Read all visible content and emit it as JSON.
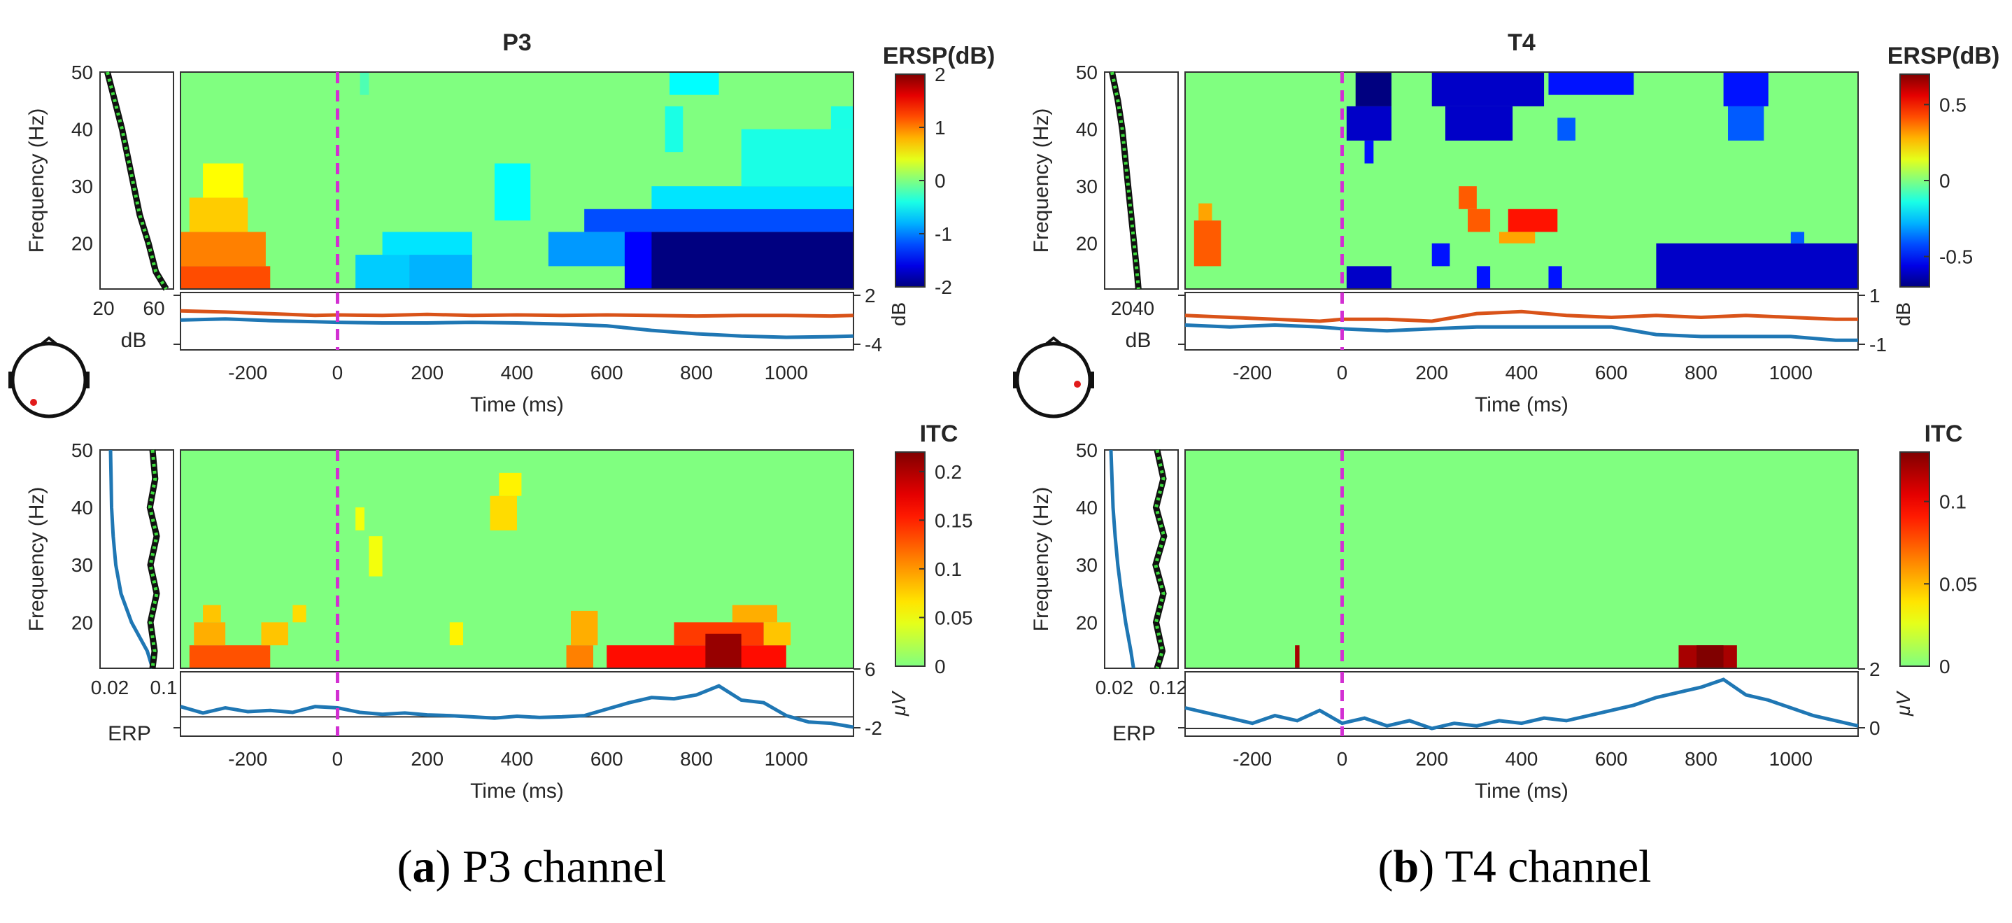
{
  "figure": {
    "caption_a_letter": "a",
    "caption_a_text": " P3 channel",
    "caption_b_letter": "b",
    "caption_b_text": " T4 channel",
    "colors": {
      "background_green": "#80FF80",
      "erp_blue": "#1F77B4",
      "ersp_orange": "#D95319",
      "marker_magenta": "#D22FD2",
      "spectrum_green": "#1B6E1B",
      "scalp_dot": "#E11B1B"
    }
  },
  "chart_data": [
    {
      "id": "a-ersp",
      "type": "heatmap",
      "panel": "P3",
      "title": "P3",
      "xlabel": "Time (ms)",
      "ylabel": "Frequency (Hz)",
      "xlim": [
        -350,
        1150
      ],
      "ylim": [
        12,
        50
      ],
      "xticks": [
        "-200",
        "0",
        "200",
        "400",
        "600",
        "800",
        "1000"
      ],
      "yticks": [
        "20",
        "30",
        "40",
        "50"
      ],
      "colorbar_label": "ERSP(dB)",
      "colorbar_ticks": [
        "2",
        "1",
        "0",
        "-1",
        "-2"
      ],
      "clim": [
        -2,
        2
      ],
      "stimulus_onset_ms": 0,
      "cells": [
        {
          "t0": -350,
          "t1": -150,
          "f0": 12,
          "f1": 16,
          "v": 1.2
        },
        {
          "t0": -350,
          "t1": -160,
          "f0": 16,
          "f1": 22,
          "v": 1.0
        },
        {
          "t0": -330,
          "t1": -200,
          "f0": 22,
          "f1": 28,
          "v": 0.7
        },
        {
          "t0": -300,
          "t1": -210,
          "f0": 28,
          "f1": 34,
          "v": 0.5
        },
        {
          "t0": 40,
          "t1": 160,
          "f0": 12,
          "f1": 18,
          "v": -0.7
        },
        {
          "t0": 100,
          "t1": 300,
          "f0": 18,
          "f1": 22,
          "v": -0.6
        },
        {
          "t0": 160,
          "t1": 300,
          "f0": 12,
          "f1": 18,
          "v": -0.8
        },
        {
          "t0": 350,
          "t1": 430,
          "f0": 24,
          "f1": 34,
          "v": -0.5
        },
        {
          "t0": 470,
          "t1": 700,
          "f0": 16,
          "f1": 22,
          "v": -0.9
        },
        {
          "t0": 550,
          "t1": 1150,
          "f0": 22,
          "f1": 26,
          "v": -1.2
        },
        {
          "t0": 650,
          "t1": 1150,
          "f0": 12,
          "f1": 22,
          "v": -2.0
        },
        {
          "t0": 640,
          "t1": 700,
          "f0": 12,
          "f1": 22,
          "v": -1.5
        },
        {
          "t0": 700,
          "t1": 1150,
          "f0": 26,
          "f1": 30,
          "v": -0.6
        },
        {
          "t0": 900,
          "t1": 1150,
          "f0": 30,
          "f1": 40,
          "v": -0.4
        },
        {
          "t0": 1100,
          "t1": 1150,
          "f0": 40,
          "f1": 44,
          "v": -0.4
        },
        {
          "t0": 730,
          "t1": 770,
          "f0": 36,
          "f1": 44,
          "v": -0.4
        },
        {
          "t0": 740,
          "t1": 850,
          "f0": 46,
          "f1": 50,
          "v": -0.5
        },
        {
          "t0": 50,
          "t1": 70,
          "f0": 46,
          "f1": 50,
          "v": -0.2
        }
      ]
    },
    {
      "id": "a-ersp-summary",
      "type": "line",
      "panel": "P3",
      "ylabel": "dB",
      "yticks": [
        "2",
        "-4"
      ],
      "ylim": [
        -6,
        4
      ],
      "series": [
        {
          "color": "#D95319",
          "x": [
            -350,
            -250,
            -150,
            -50,
            0,
            100,
            200,
            300,
            400,
            500,
            600,
            700,
            800,
            900,
            1000,
            1100,
            1150
          ],
          "y": [
            0.8,
            0.6,
            0.3,
            0.0,
            0.1,
            0.0,
            0.2,
            0.0,
            0.1,
            0.0,
            0.1,
            0.0,
            -0.1,
            0.0,
            0.0,
            -0.1,
            0.0
          ]
        },
        {
          "color": "#1F77B4",
          "x": [
            -350,
            -250,
            -150,
            -50,
            0,
            100,
            200,
            300,
            400,
            500,
            600,
            700,
            800,
            900,
            1000,
            1100,
            1150
          ],
          "y": [
            -0.8,
            -0.6,
            -0.9,
            -1.1,
            -1.2,
            -1.3,
            -1.3,
            -1.2,
            -1.3,
            -1.5,
            -1.8,
            -2.6,
            -3.2,
            -3.6,
            -3.8,
            -3.7,
            -3.6
          ]
        }
      ]
    },
    {
      "id": "a-ersp-spectrum",
      "type": "line",
      "panel": "P3",
      "xticks": [
        "20",
        "60"
      ],
      "xlabel": "dB",
      "freq": [
        50,
        45,
        40,
        35,
        30,
        25,
        20,
        15,
        12
      ],
      "values": [
        20,
        25,
        30,
        34,
        38,
        42,
        48,
        53,
        60
      ]
    },
    {
      "id": "a-itc",
      "type": "heatmap",
      "panel": "P3",
      "xlabel": "Time (ms)",
      "ylabel": "Frequency (Hz)",
      "xlim": [
        -350,
        1150
      ],
      "ylim": [
        12,
        50
      ],
      "xticks": [
        "-200",
        "0",
        "200",
        "400",
        "600",
        "800",
        "1000"
      ],
      "yticks": [
        "20",
        "30",
        "40",
        "50"
      ],
      "colorbar_label": "ITC",
      "colorbar_ticks": [
        "0.2",
        "0.15",
        "0.1",
        "0.05",
        "0"
      ],
      "clim": [
        0,
        0.22
      ],
      "stimulus_onset_ms": 0,
      "cells": [
        {
          "t0": -330,
          "t1": -150,
          "f0": 12,
          "f1": 16,
          "v": 0.13
        },
        {
          "t0": -320,
          "t1": -250,
          "f0": 16,
          "f1": 20,
          "v": 0.09
        },
        {
          "t0": -300,
          "t1": -260,
          "f0": 20,
          "f1": 23,
          "v": 0.08
        },
        {
          "t0": -170,
          "t1": -110,
          "f0": 16,
          "f1": 20,
          "v": 0.08
        },
        {
          "t0": -100,
          "t1": -70,
          "f0": 20,
          "f1": 23,
          "v": 0.07
        },
        {
          "t0": 40,
          "t1": 60,
          "f0": 36,
          "f1": 40,
          "v": 0.05
        },
        {
          "t0": 70,
          "t1": 100,
          "f0": 28,
          "f1": 35,
          "v": 0.05
        },
        {
          "t0": 340,
          "t1": 400,
          "f0": 36,
          "f1": 42,
          "v": 0.07
        },
        {
          "t0": 360,
          "t1": 410,
          "f0": 42,
          "f1": 46,
          "v": 0.06
        },
        {
          "t0": 250,
          "t1": 280,
          "f0": 16,
          "f1": 20,
          "v": 0.06
        },
        {
          "t0": 510,
          "t1": 570,
          "f0": 12,
          "f1": 16,
          "v": 0.11
        },
        {
          "t0": 520,
          "t1": 580,
          "f0": 16,
          "f1": 22,
          "v": 0.09
        },
        {
          "t0": 600,
          "t1": 1000,
          "f0": 12,
          "f1": 16,
          "v": 0.16
        },
        {
          "t0": 750,
          "t1": 950,
          "f0": 16,
          "f1": 20,
          "v": 0.14
        },
        {
          "t0": 820,
          "t1": 900,
          "f0": 12,
          "f1": 18,
          "v": 0.21
        },
        {
          "t0": 880,
          "t1": 980,
          "f0": 20,
          "f1": 23,
          "v": 0.09
        },
        {
          "t0": 950,
          "t1": 1010,
          "f0": 16,
          "f1": 20,
          "v": 0.08
        }
      ]
    },
    {
      "id": "a-erp",
      "type": "line",
      "panel": "P3",
      "xlabel": "Time (ms)",
      "ylabel": "μV",
      "yticks": [
        "6",
        "-2"
      ],
      "ylim": [
        -3,
        7
      ],
      "left_label": "ERP",
      "x": [
        -350,
        -300,
        -250,
        -200,
        -150,
        -100,
        -50,
        0,
        50,
        100,
        150,
        200,
        250,
        300,
        350,
        400,
        450,
        500,
        550,
        600,
        650,
        700,
        750,
        800,
        850,
        900,
        950,
        1000,
        1050,
        1100,
        1150
      ],
      "y": [
        1.6,
        0.6,
        1.4,
        0.8,
        1.0,
        0.7,
        1.6,
        1.4,
        0.7,
        0.4,
        0.6,
        0.3,
        0.2,
        0.0,
        -0.2,
        0.1,
        -0.1,
        0.0,
        0.2,
        1.2,
        2.2,
        3.0,
        2.8,
        3.4,
        4.8,
        2.6,
        2.2,
        0.2,
        -0.8,
        -1.0,
        -1.6
      ]
    },
    {
      "id": "a-itc-spectrum",
      "type": "line",
      "panel": "P3",
      "xticks": [
        "0.02",
        "0.1"
      ],
      "freq": [
        50,
        45,
        40,
        35,
        30,
        25,
        20,
        15,
        12
      ],
      "itc": [
        0.02,
        0.021,
        0.022,
        0.025,
        0.03,
        0.04,
        0.06,
        0.09,
        0.1
      ],
      "sig": [
        0.1,
        0.105,
        0.095,
        0.108,
        0.096,
        0.108,
        0.096,
        0.104,
        0.1
      ]
    },
    {
      "id": "b-ersp",
      "type": "heatmap",
      "panel": "T4",
      "title": "T4",
      "xlabel": "Time (ms)",
      "ylabel": "Frequency (Hz)",
      "xlim": [
        -350,
        1150
      ],
      "ylim": [
        12,
        50
      ],
      "xticks": [
        "-200",
        "0",
        "200",
        "400",
        "600",
        "800",
        "1000"
      ],
      "yticks": [
        "20",
        "30",
        "40",
        "50"
      ],
      "colorbar_label": "ERSP(dB)",
      "colorbar_ticks": [
        "0.5",
        "0",
        "-0.5"
      ],
      "clim": [
        -0.7,
        0.7
      ],
      "stimulus_onset_ms": 0,
      "cells": [
        {
          "t0": 30,
          "t1": 110,
          "f0": 44,
          "f1": 50,
          "v": -0.7
        },
        {
          "t0": 10,
          "t1": 110,
          "f0": 38,
          "f1": 44,
          "v": -0.6
        },
        {
          "t0": 50,
          "t1": 70,
          "f0": 34,
          "f1": 38,
          "v": -0.5
        },
        {
          "t0": 200,
          "t1": 450,
          "f0": 44,
          "f1": 50,
          "v": -0.6
        },
        {
          "t0": 230,
          "t1": 380,
          "f0": 38,
          "f1": 44,
          "v": -0.6
        },
        {
          "t0": 460,
          "t1": 650,
          "f0": 46,
          "f1": 50,
          "v": -0.5
        },
        {
          "t0": 480,
          "t1": 520,
          "f0": 38,
          "f1": 42,
          "v": -0.4
        },
        {
          "t0": 850,
          "t1": 950,
          "f0": 44,
          "f1": 50,
          "v": -0.5
        },
        {
          "t0": 860,
          "t1": 940,
          "f0": 38,
          "f1": 44,
          "v": -0.4
        },
        {
          "t0": 10,
          "t1": 110,
          "f0": 12,
          "f1": 16,
          "v": -0.6
        },
        {
          "t0": 200,
          "t1": 240,
          "f0": 16,
          "f1": 20,
          "v": -0.5
        },
        {
          "t0": 300,
          "t1": 330,
          "f0": 12,
          "f1": 16,
          "v": -0.5
        },
        {
          "t0": 460,
          "t1": 490,
          "f0": 12,
          "f1": 16,
          "v": -0.5
        },
        {
          "t0": 700,
          "t1": 1150,
          "f0": 12,
          "f1": 20,
          "v": -0.6
        },
        {
          "t0": 1000,
          "t1": 1030,
          "f0": 20,
          "f1": 22,
          "v": -0.4
        },
        {
          "t0": -330,
          "t1": -270,
          "f0": 16,
          "f1": 24,
          "v": 0.4
        },
        {
          "t0": -320,
          "t1": -290,
          "f0": 24,
          "f1": 27,
          "v": 0.3
        },
        {
          "t0": 260,
          "t1": 300,
          "f0": 26,
          "f1": 30,
          "v": 0.4
        },
        {
          "t0": 280,
          "t1": 330,
          "f0": 22,
          "f1": 26,
          "v": 0.4
        },
        {
          "t0": 370,
          "t1": 480,
          "f0": 22,
          "f1": 26,
          "v": 0.5
        },
        {
          "t0": 350,
          "t1": 430,
          "f0": 20,
          "f1": 22,
          "v": 0.3
        }
      ]
    },
    {
      "id": "b-ersp-summary",
      "type": "line",
      "panel": "T4",
      "ylabel": "dB",
      "yticks": [
        "1",
        "-1"
      ],
      "ylim": [
        -1.5,
        1.5
      ],
      "series": [
        {
          "color": "#D95319",
          "x": [
            -350,
            -250,
            -150,
            -50,
            0,
            100,
            200,
            300,
            400,
            500,
            600,
            700,
            800,
            900,
            1000,
            1100,
            1150
          ],
          "y": [
            0.3,
            0.2,
            0.1,
            0.0,
            0.1,
            0.1,
            0.0,
            0.4,
            0.5,
            0.3,
            0.2,
            0.3,
            0.2,
            0.3,
            0.2,
            0.1,
            0.1
          ]
        },
        {
          "color": "#1F77B4",
          "x": [
            -350,
            -250,
            -150,
            -50,
            0,
            100,
            200,
            300,
            400,
            500,
            600,
            700,
            800,
            900,
            1000,
            1100,
            1150
          ],
          "y": [
            -0.2,
            -0.3,
            -0.2,
            -0.3,
            -0.4,
            -0.5,
            -0.4,
            -0.3,
            -0.3,
            -0.3,
            -0.3,
            -0.7,
            -0.8,
            -0.8,
            -0.8,
            -1.0,
            -1.0
          ]
        }
      ]
    },
    {
      "id": "b-ersp-spectrum",
      "type": "line",
      "panel": "T4",
      "xticks": [
        "2040"
      ],
      "xlabel": "dB",
      "freq": [
        50,
        45,
        40,
        35,
        30,
        25,
        20,
        15,
        12
      ],
      "values": [
        20,
        24,
        27,
        29,
        31,
        33,
        35,
        37,
        38
      ]
    },
    {
      "id": "b-itc",
      "type": "heatmap",
      "panel": "T4",
      "xlabel": "Time (ms)",
      "ylabel": "Frequency (Hz)",
      "xlim": [
        -350,
        1150
      ],
      "ylim": [
        12,
        50
      ],
      "xticks": [
        "-200",
        "0",
        "200",
        "400",
        "600",
        "800",
        "1000"
      ],
      "yticks": [
        "20",
        "30",
        "40",
        "50"
      ],
      "colorbar_label": "ITC",
      "colorbar_ticks": [
        "0.1",
        "0.05",
        "0"
      ],
      "clim": [
        0,
        0.13
      ],
      "stimulus_onset_ms": 0,
      "cells": [
        {
          "t0": -105,
          "t1": -95,
          "f0": 12,
          "f1": 16,
          "v": 0.12
        },
        {
          "t0": 750,
          "t1": 880,
          "f0": 12,
          "f1": 16,
          "v": 0.12
        },
        {
          "t0": 790,
          "t1": 850,
          "f0": 12,
          "f1": 16,
          "v": 0.13
        }
      ]
    },
    {
      "id": "b-erp",
      "type": "line",
      "panel": "T4",
      "xlabel": "Time (ms)",
      "ylabel": "μV",
      "yticks": [
        "2",
        "0"
      ],
      "ylim": [
        -0.3,
        2.2
      ],
      "left_label": "ERP",
      "x": [
        -350,
        -300,
        -250,
        -200,
        -150,
        -100,
        -50,
        0,
        50,
        100,
        150,
        200,
        250,
        300,
        350,
        400,
        450,
        500,
        550,
        600,
        650,
        700,
        750,
        800,
        850,
        900,
        950,
        1000,
        1050,
        1100,
        1150
      ],
      "y": [
        0.8,
        0.6,
        0.4,
        0.2,
        0.5,
        0.3,
        0.7,
        0.2,
        0.4,
        0.1,
        0.3,
        0.0,
        0.2,
        0.1,
        0.3,
        0.2,
        0.4,
        0.3,
        0.5,
        0.7,
        0.9,
        1.2,
        1.4,
        1.6,
        1.9,
        1.3,
        1.1,
        0.8,
        0.5,
        0.3,
        0.1
      ]
    },
    {
      "id": "b-itc-spectrum",
      "type": "line",
      "panel": "T4",
      "xticks": [
        "0.02",
        "0.12"
      ],
      "freq": [
        50,
        45,
        40,
        35,
        30,
        25,
        20,
        15,
        12
      ],
      "itc": [
        0.012,
        0.014,
        0.016,
        0.02,
        0.025,
        0.032,
        0.04,
        0.05,
        0.055
      ],
      "sig": [
        0.1,
        0.112,
        0.098,
        0.113,
        0.097,
        0.112,
        0.098,
        0.11,
        0.1
      ]
    }
  ]
}
